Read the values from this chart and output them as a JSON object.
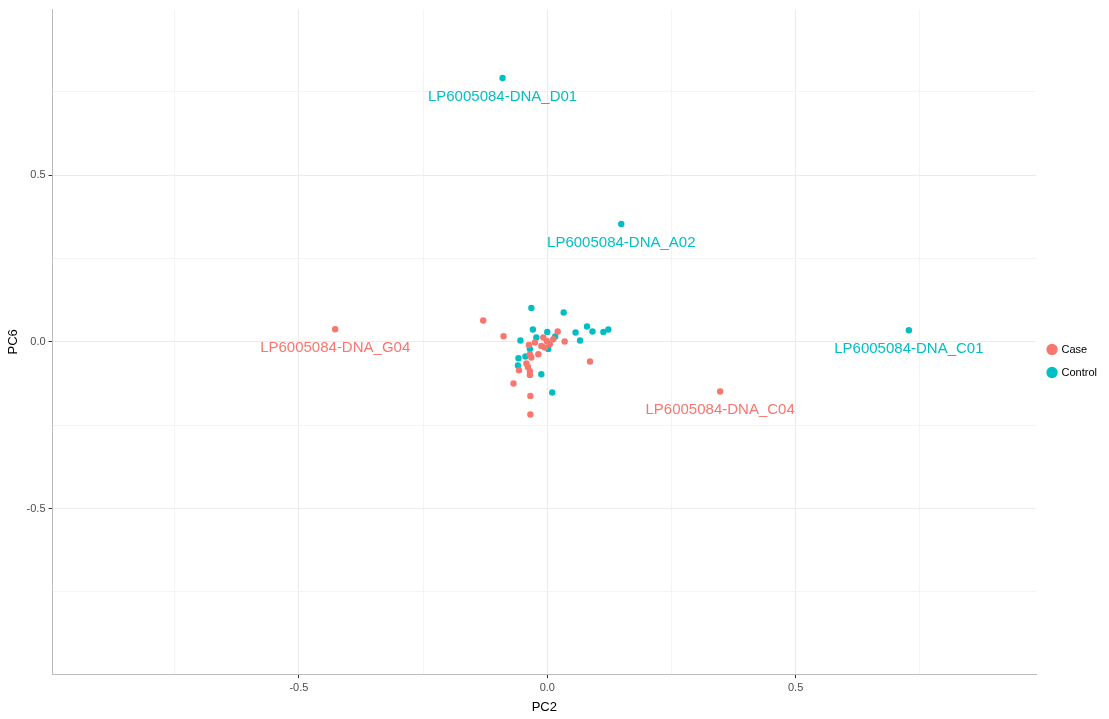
{
  "chart_data": {
    "type": "scatter",
    "xlabel": "PC2",
    "ylabel": "PC6",
    "xlim": [
      -0.996,
      0.984
    ],
    "ylim": [
      -0.997,
      0.997
    ],
    "xticks": [
      {
        "value": -0.75,
        "label": null
      },
      {
        "value": -0.5,
        "label": "-0.5"
      },
      {
        "value": -0.25,
        "label": null
      },
      {
        "value": 0,
        "label": "0.0"
      },
      {
        "value": 0.25,
        "label": null
      },
      {
        "value": 0.5,
        "label": "0.5"
      },
      {
        "value": 0.75,
        "label": null
      }
    ],
    "yticks": [
      {
        "value": -0.75,
        "label": null
      },
      {
        "value": -0.5,
        "label": "-0.5"
      },
      {
        "value": -0.25,
        "label": null
      },
      {
        "value": 0,
        "label": "0.0"
      },
      {
        "value": 0.25,
        "label": null
      },
      {
        "value": 0.5,
        "label": "0.5"
      },
      {
        "value": 0.75,
        "label": null
      }
    ],
    "grid": true,
    "legend": "right",
    "marker": "circle",
    "series": [
      {
        "name": "Case",
        "color": "#f8766d",
        "x": [
          -0.427,
          0.348,
          -0.129,
          -0.088,
          0.021,
          0.035,
          -0.037,
          0.086,
          -0.018,
          -0.035,
          -0.032,
          -0.042,
          -0.039,
          -0.035,
          -0.035,
          -0.057,
          -0.068,
          -0.034,
          -0.034,
          -0.008,
          -0.001,
          0.005,
          -0.012,
          -0.005,
          -0.025,
          0.012
        ],
        "values": [
          0.038,
          -0.149,
          0.064,
          0.017,
          0.031,
          0.001,
          -0.009,
          -0.059,
          -0.037,
          -0.038,
          -0.047,
          -0.065,
          -0.075,
          -0.088,
          -0.099,
          -0.085,
          -0.125,
          -0.162,
          -0.218,
          0.013,
          0.003,
          -0.007,
          -0.012,
          -0.017,
          -0.002,
          0.008
        ]
      },
      {
        "name": "Control",
        "color": "#00bfc4",
        "x": [
          -0.09,
          0.149,
          0.728,
          -0.032,
          0.033,
          -0.029,
          0.0,
          0.057,
          0.08,
          0.091,
          0.113,
          0.123,
          0.066,
          -0.054,
          0.016,
          0.002,
          -0.035,
          -0.044,
          -0.058,
          -0.059,
          -0.012,
          0.01,
          -0.022
        ],
        "values": [
          0.792,
          0.354,
          0.035,
          0.102,
          0.088,
          0.037,
          0.03,
          0.028,
          0.046,
          0.031,
          0.03,
          0.037,
          0.004,
          0.004,
          0.016,
          -0.021,
          -0.021,
          -0.044,
          -0.049,
          -0.071,
          -0.097,
          -0.152,
          0.013
        ]
      }
    ],
    "annotations": [
      {
        "text": "LP6005084-DNA_D01",
        "x": -0.09,
        "y": 0.792
      },
      {
        "text": "LP6005084-DNA_A02",
        "x": 0.149,
        "y": 0.354
      },
      {
        "text": "LP6005084-DNA_G04",
        "x": -0.427,
        "y": 0.038
      },
      {
        "text": "LP6005084-DNA_C01",
        "x": 0.728,
        "y": 0.035
      },
      {
        "text": "LP6005084-DNA_C04",
        "x": 0.348,
        "y": -0.149
      }
    ]
  }
}
